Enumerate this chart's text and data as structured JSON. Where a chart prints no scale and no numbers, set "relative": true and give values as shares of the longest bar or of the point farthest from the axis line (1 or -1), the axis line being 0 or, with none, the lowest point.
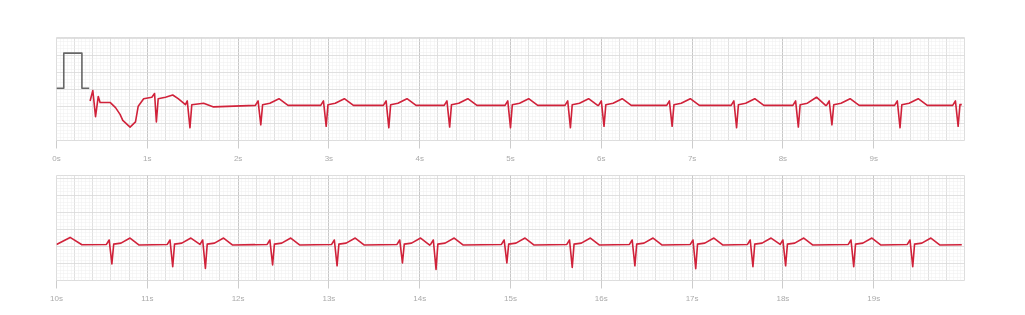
{
  "chart_data": [
    {
      "type": "line",
      "relative": true,
      "xlim": [
        0,
        10
      ],
      "xticks": [
        {
          "value": 0,
          "label": "0s"
        },
        {
          "value": 1,
          "label": "1s"
        },
        {
          "value": 2,
          "label": "2s"
        },
        {
          "value": 3,
          "label": "3s"
        },
        {
          "value": 4,
          "label": "4s"
        },
        {
          "value": 5,
          "label": "5s"
        },
        {
          "value": 6,
          "label": "6s"
        },
        {
          "value": 7,
          "label": "7s"
        },
        {
          "value": 8,
          "label": "8s"
        },
        {
          "value": 9,
          "label": "9s"
        }
      ],
      "grid": true,
      "series": [
        {
          "color": "#666666",
          "x": [
            0,
            0.08,
            0.08,
            0.28,
            0.28,
            0.36
          ],
          "values": [
            0.53,
            0.53,
            1,
            1,
            0.53,
            0.53
          ]
        },
        {
          "color": "#d0223a",
          "x": [
            0.37,
            0.4,
            0.43,
            0.46,
            0.48,
            0.59,
            0.65,
            0.7,
            0.73,
            0.81,
            0.87,
            0.9,
            0.96,
            1.05,
            1.08,
            1.1,
            1.12,
            1.2,
            1.28,
            1.34,
            1.42,
            1.44,
            1.47,
            1.49,
            1.62,
            1.73,
            2.19,
            2.22,
            2.25,
            2.27,
            2.35,
            2.45,
            2.55,
            2.91,
            2.94,
            2.97,
            2.99,
            3.07,
            3.17,
            3.27,
            3.6,
            3.63,
            3.66,
            3.68,
            3.76,
            3.86,
            3.96,
            4.27,
            4.3,
            4.33,
            4.35,
            4.43,
            4.53,
            4.63,
            4.94,
            4.97,
            5.0,
            5.02,
            5.1,
            5.2,
            5.3,
            5.6,
            5.63,
            5.66,
            5.68,
            5.76,
            5.86,
            5.96,
            5.97,
            6.0,
            6.03,
            6.05,
            6.13,
            6.23,
            6.33,
            6.72,
            6.75,
            6.78,
            6.8,
            6.88,
            6.98,
            7.08,
            7.43,
            7.46,
            7.49,
            7.51,
            7.59,
            7.69,
            7.79,
            8.11,
            8.14,
            8.17,
            8.19,
            8.27,
            8.37,
            8.47,
            8.48,
            8.51,
            8.54,
            8.56,
            8.64,
            8.74,
            8.84,
            9.23,
            9.26,
            9.29,
            9.31,
            9.39,
            9.49,
            9.59,
            9.87,
            9.9,
            9.93,
            9.95,
            9.97
          ],
          "values": [
            0.36,
            0.5,
            0.15,
            0.42,
            0.34,
            0.34,
            0.27,
            0.18,
            0.1,
            0.01,
            0.08,
            0.29,
            0.39,
            0.41,
            0.46,
            0.08,
            0.39,
            0.41,
            0.44,
            0.39,
            0.31,
            0.36,
            0,
            0.31,
            0.33,
            0.28,
            0.3,
            0.36,
            0.04,
            0.31,
            0.33,
            0.39,
            0.3,
            0.3,
            0.36,
            0.02,
            0.31,
            0.33,
            0.39,
            0.3,
            0.3,
            0.36,
            0,
            0.31,
            0.33,
            0.39,
            0.3,
            0.3,
            0.36,
            0.01,
            0.31,
            0.33,
            0.39,
            0.3,
            0.3,
            0.36,
            0,
            0.31,
            0.33,
            0.39,
            0.3,
            0.3,
            0.36,
            0,
            0.31,
            0.33,
            0.39,
            0.3,
            0.3,
            0.36,
            0.02,
            0.31,
            0.33,
            0.39,
            0.3,
            0.3,
            0.36,
            0.02,
            0.31,
            0.33,
            0.39,
            0.3,
            0.3,
            0.36,
            0,
            0.31,
            0.33,
            0.39,
            0.3,
            0.3,
            0.36,
            0.01,
            0.31,
            0.33,
            0.41,
            0.3,
            0.3,
            0.36,
            0.04,
            0.31,
            0.33,
            0.39,
            0.3,
            0.3,
            0.36,
            0,
            0.31,
            0.33,
            0.39,
            0.3,
            0.3,
            0.36,
            0.02,
            0.31,
            0.31
          ]
        }
      ]
    },
    {
      "type": "line",
      "relative": true,
      "xlim": [
        10,
        20
      ],
      "xticks": [
        {
          "value": 10,
          "label": "10s"
        },
        {
          "value": 11,
          "label": "11s"
        },
        {
          "value": 12,
          "label": "12s"
        },
        {
          "value": 13,
          "label": "13s"
        },
        {
          "value": 14,
          "label": "14s"
        },
        {
          "value": 15,
          "label": "15s"
        },
        {
          "value": 16,
          "label": "16s"
        },
        {
          "value": 17,
          "label": "17s"
        },
        {
          "value": 18,
          "label": "18s"
        },
        {
          "value": 19,
          "label": "19s"
        }
      ],
      "grid": true,
      "series": [
        {
          "color": "#d0223a",
          "x": [
            10.0,
            10.15,
            10.28,
            10.55,
            10.58,
            10.61,
            10.63,
            10.71,
            10.81,
            10.91,
            11.22,
            11.25,
            11.28,
            11.3,
            11.38,
            11.48,
            11.58,
            11.61,
            11.64,
            11.66,
            11.74,
            11.84,
            11.94,
            12.32,
            12.35,
            12.38,
            12.4,
            12.48,
            12.58,
            12.68,
            13.03,
            13.06,
            13.09,
            13.11,
            13.19,
            13.29,
            13.39,
            13.75,
            13.78,
            13.81,
            13.83,
            13.91,
            14.01,
            14.11,
            14.12,
            14.15,
            14.18,
            14.2,
            14.28,
            14.38,
            14.48,
            14.9,
            14.93,
            14.96,
            14.98,
            15.06,
            15.16,
            15.26,
            15.62,
            15.65,
            15.68,
            15.7,
            15.78,
            15.88,
            15.98,
            16.31,
            16.34,
            16.37,
            16.39,
            16.47,
            16.57,
            16.67,
            16.98,
            17.01,
            17.04,
            17.06,
            17.14,
            17.24,
            17.34,
            17.61,
            17.64,
            17.67,
            17.69,
            17.77,
            17.87,
            17.97,
            18.0,
            18.03,
            18.05,
            18.13,
            18.23,
            18.33,
            18.72,
            18.75,
            18.78,
            18.8,
            18.88,
            18.98,
            19.08,
            19.37,
            19.4,
            19.43,
            19.45,
            19.53,
            19.63,
            19.73,
            19.97
          ],
          "values": [
            0.78,
            1,
            0.77,
            0.78,
            0.92,
            0.17,
            0.79,
            0.82,
            0.98,
            0.76,
            0.78,
            0.92,
            0.08,
            0.79,
            0.82,
            0.98,
            0.78,
            0.92,
            0.03,
            0.79,
            0.82,
            0.98,
            0.76,
            0.78,
            0.92,
            0.14,
            0.79,
            0.82,
            0.98,
            0.76,
            0.78,
            0.92,
            0.11,
            0.79,
            0.82,
            0.98,
            0.76,
            0.78,
            0.92,
            0.2,
            0.79,
            0.82,
            0.98,
            0.76,
            0.78,
            0.92,
            0,
            0.79,
            0.82,
            0.98,
            0.76,
            0.78,
            0.92,
            0.2,
            0.79,
            0.82,
            0.98,
            0.76,
            0.78,
            0.92,
            0.06,
            0.79,
            0.82,
            0.98,
            0.76,
            0.78,
            0.92,
            0.11,
            0.79,
            0.82,
            0.98,
            0.76,
            0.78,
            0.92,
            0.02,
            0.79,
            0.82,
            0.98,
            0.76,
            0.78,
            0.92,
            0.08,
            0.79,
            0.82,
            0.98,
            0.78,
            0.92,
            0.11,
            0.79,
            0.82,
            0.98,
            0.76,
            0.78,
            0.92,
            0.08,
            0.79,
            0.82,
            0.98,
            0.76,
            0.78,
            0.92,
            0.08,
            0.79,
            0.82,
            0.98,
            0.76,
            0.77
          ]
        }
      ]
    }
  ]
}
